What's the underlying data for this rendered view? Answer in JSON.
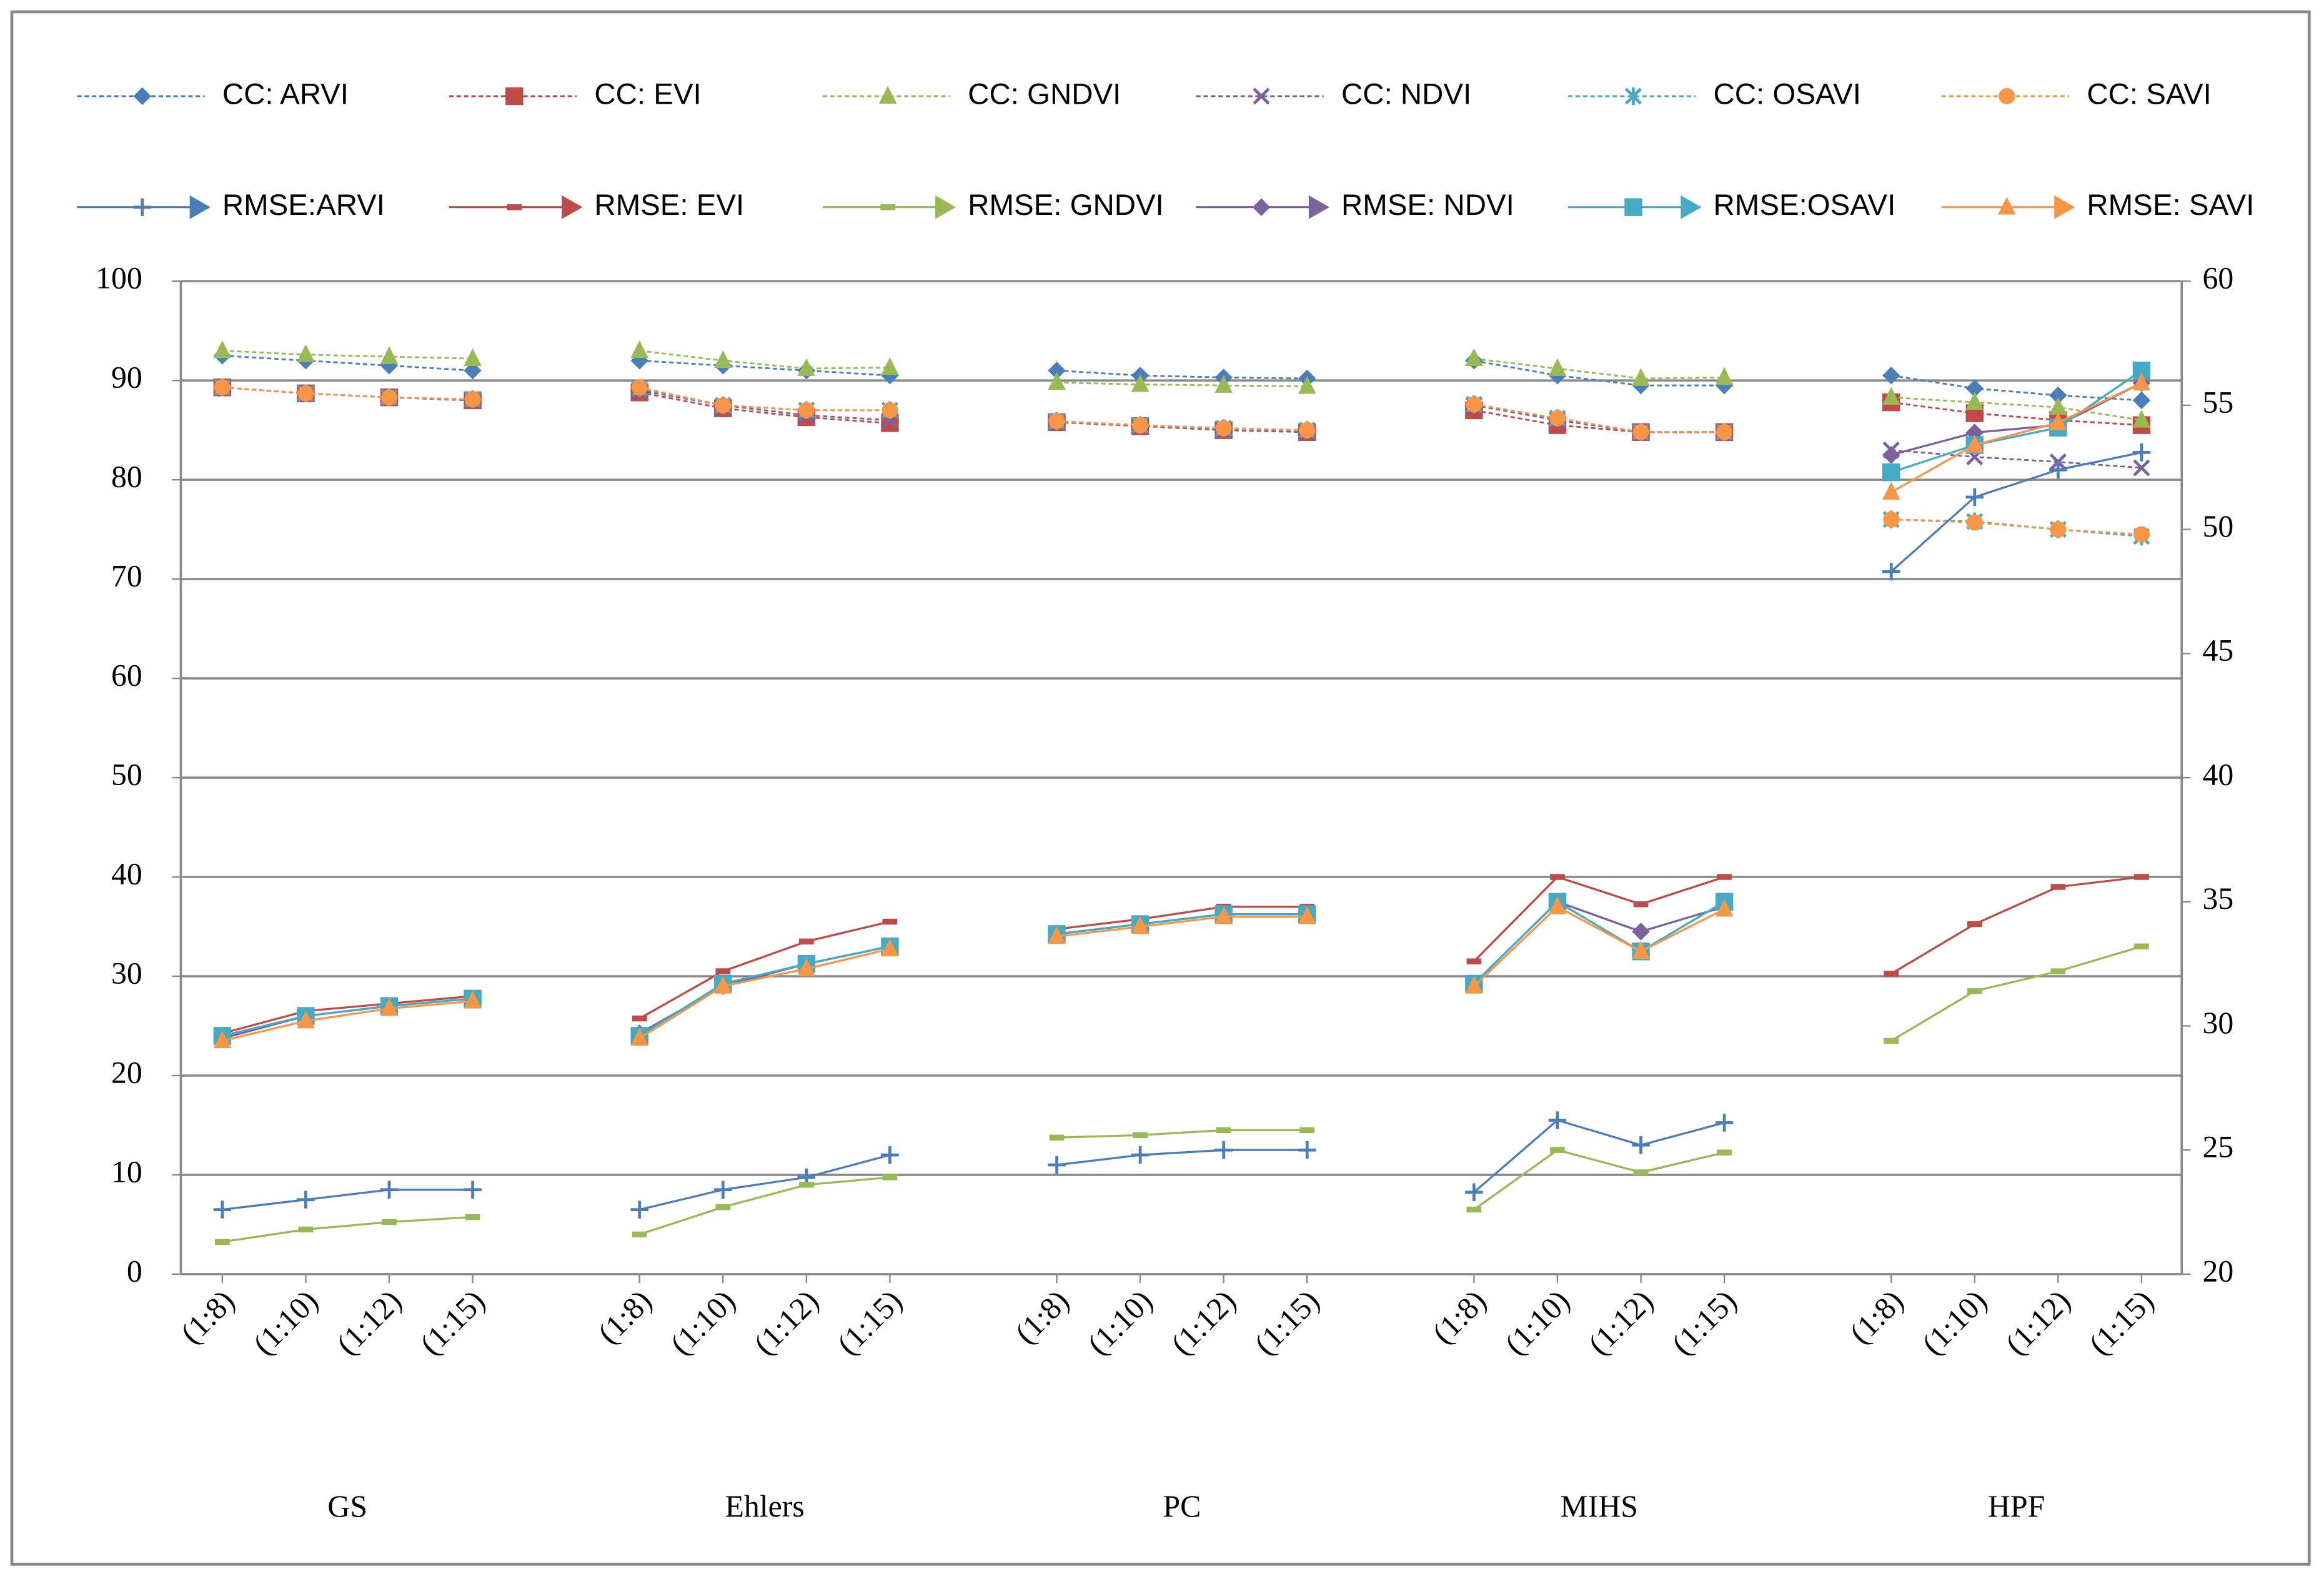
{
  "chart_data": {
    "type": "line",
    "groups": [
      "GS",
      "Ehlers",
      "PC",
      "MIHS",
      "HPF"
    ],
    "categories": [
      "(1:8)",
      "(1:10)",
      "(1:12)",
      "(1:15)",
      "(1:8)",
      "(1:10)",
      "(1:12)",
      "(1:15)",
      "(1:8)",
      "(1:10)",
      "(1:12)",
      "(1:15)",
      "(1:8)",
      "(1:10)",
      "(1:12)",
      "(1:15)",
      "(1:8)",
      "(1:10)",
      "(1:12)",
      "(1:15)"
    ],
    "ylim": [
      0,
      100
    ],
    "yticks": [
      0,
      10,
      20,
      30,
      40,
      50,
      60,
      70,
      80,
      90,
      100
    ],
    "y2lim": [
      20,
      60
    ],
    "y2ticks": [
      20,
      25,
      30,
      35,
      40,
      45,
      50,
      55,
      60
    ],
    "grid": true,
    "series": [
      {
        "name": "CC: ARVI",
        "color": "#4a7ebb",
        "marker": "diamond",
        "dash": true,
        "values": [
          92.5,
          92,
          91.5,
          91,
          92,
          91.5,
          91,
          90.5,
          91,
          90.5,
          90.3,
          90.2,
          92,
          90.5,
          89.5,
          89.5,
          90.5,
          89.2,
          88.5,
          88
        ]
      },
      {
        "name": "CC: EVI",
        "color": "#be4b48",
        "marker": "square",
        "dash": true,
        "values": [
          89.3,
          88.7,
          88.3,
          88,
          88.8,
          87.2,
          86.3,
          85.7,
          85.8,
          85.4,
          85,
          84.8,
          87,
          85.5,
          84.8,
          84.8,
          87.8,
          86.7,
          86,
          85.5
        ]
      },
      {
        "name": "CC: GNDVI",
        "color": "#98b954",
        "marker": "triangle",
        "dash": true,
        "values": [
          93,
          92.6,
          92.4,
          92.2,
          93,
          92,
          91.2,
          91.3,
          89.8,
          89.6,
          89.5,
          89.4,
          92.2,
          91.2,
          90.2,
          90.3,
          88.3,
          87.8,
          87.3,
          86
        ]
      },
      {
        "name": "CC: NDVI",
        "color": "#7d60a0",
        "marker": "x",
        "dash": true,
        "values": [
          89.3,
          88.7,
          88.3,
          88,
          89,
          87.5,
          86.5,
          86,
          85.8,
          85.5,
          85,
          84.8,
          87.5,
          86,
          84.8,
          84.8,
          83,
          82.3,
          81.8,
          81.2
        ]
      },
      {
        "name": "CC: OSAVI",
        "color": "#46aac5",
        "marker": "star",
        "dash": true,
        "values": [
          89.3,
          88.7,
          88.3,
          88.1,
          89.2,
          87.5,
          87,
          87,
          85.9,
          85.5,
          85.2,
          85,
          87.6,
          86.2,
          84.8,
          84.8,
          76,
          75.8,
          75,
          74.3
        ]
      },
      {
        "name": "CC: SAVI",
        "color": "#f79646",
        "marker": "circle",
        "dash": true,
        "values": [
          89.3,
          88.7,
          88.3,
          88.1,
          89.3,
          87.5,
          87,
          87,
          85.9,
          85.5,
          85.2,
          85,
          87.6,
          86.2,
          84.8,
          84.8,
          76,
          75.7,
          75,
          74.5
        ]
      },
      {
        "name": "RMSE:ARVI",
        "color": "#4a7ebb",
        "marker": "plus",
        "axis": "y2",
        "values": [
          22.6,
          23,
          23.4,
          23.4,
          22.6,
          23.4,
          23.9,
          24.8,
          24.4,
          24.8,
          25,
          25,
          23.3,
          26.2,
          25.2,
          26.1,
          48.3,
          51.3,
          52.4,
          53.1
        ]
      },
      {
        "name": "RMSE: EVI",
        "color": "#be4b48",
        "marker": "dash",
        "axis": "y2",
        "values": [
          29.7,
          30.6,
          30.9,
          31.2,
          30.3,
          32.2,
          33.4,
          34.2,
          33.9,
          34.3,
          34.8,
          34.8,
          32.6,
          36,
          34.9,
          36,
          32.1,
          34.1,
          35.6,
          36
        ]
      },
      {
        "name": "RMSE: GNDVI",
        "color": "#98b954",
        "marker": "dash",
        "axis": "y2",
        "values": [
          21.3,
          21.8,
          22.1,
          22.3,
          21.6,
          22.7,
          23.6,
          23.9,
          25.5,
          25.6,
          25.8,
          25.8,
          22.6,
          25,
          24.1,
          24.9,
          29.4,
          31.4,
          32.2,
          33.2
        ]
      },
      {
        "name": "RMSE: NDVI",
        "color": "#7d60a0",
        "marker": "diamond",
        "axis": "y2",
        "values": [
          29.5,
          30.4,
          30.8,
          31.1,
          29.7,
          31.6,
          32.5,
          33.2,
          33.7,
          34.1,
          34.5,
          34.5,
          31.7,
          35,
          33.8,
          34.8,
          53,
          53.9,
          54.2,
          55.9
        ]
      },
      {
        "name": "RMSE:OSAVI",
        "color": "#46aac5",
        "marker": "square",
        "axis": "y2",
        "values": [
          29.6,
          30.4,
          30.8,
          31.1,
          29.6,
          31.7,
          32.5,
          33.2,
          33.7,
          34.1,
          34.5,
          34.5,
          31.7,
          35,
          33,
          35,
          52.3,
          53.4,
          54.1,
          56.4
        ]
      },
      {
        "name": "RMSE: SAVI",
        "color": "#f79646",
        "marker": "triangle",
        "axis": "y2",
        "values": [
          29.4,
          30.2,
          30.7,
          31,
          29.5,
          31.6,
          32.3,
          33.1,
          33.6,
          34,
          34.4,
          34.4,
          31.6,
          34.8,
          33,
          34.7,
          51.5,
          53.4,
          54.3,
          55.9
        ]
      }
    ]
  }
}
